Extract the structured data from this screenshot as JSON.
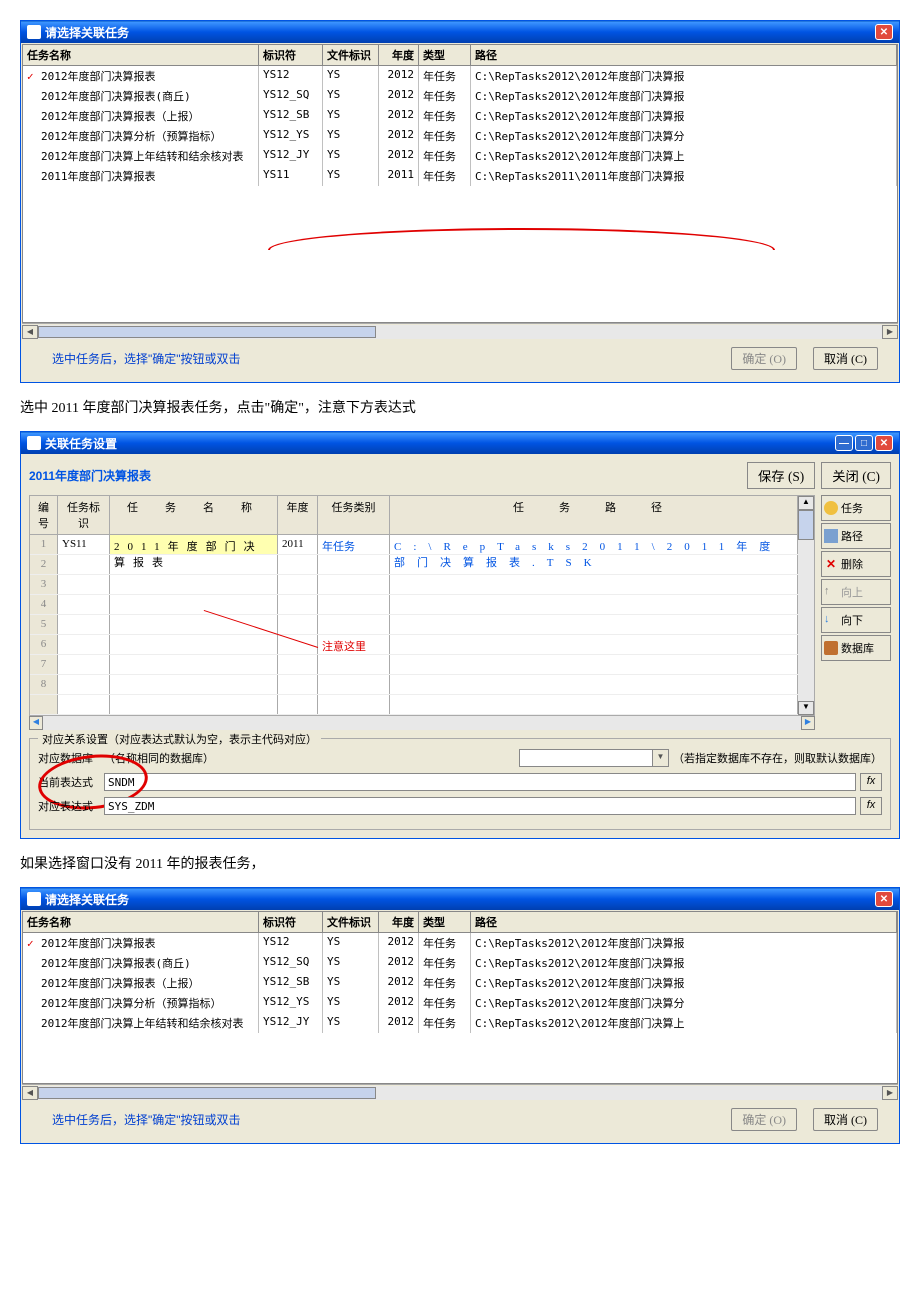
{
  "dialog1": {
    "title": "请选择关联任务",
    "cols": {
      "name": "任务名称",
      "id": "标识符",
      "file": "文件标识",
      "year": "年度",
      "type": "类型",
      "path": "路径"
    },
    "rows": [
      {
        "checked": true,
        "name": "2012年度部门决算报表",
        "id": "YS12",
        "file": "YS",
        "year": "2012",
        "type": "年任务",
        "path": "C:\\RepTasks2012\\2012年度部门决算报"
      },
      {
        "name": "2012年度部门决算报表(商丘)",
        "id": "YS12_SQ",
        "file": "YS",
        "year": "2012",
        "type": "年任务",
        "path": "C:\\RepTasks2012\\2012年度部门决算报"
      },
      {
        "name": "2012年度部门决算报表（上报）",
        "id": "YS12_SB",
        "file": "YS",
        "year": "2012",
        "type": "年任务",
        "path": "C:\\RepTasks2012\\2012年度部门决算报"
      },
      {
        "name": "2012年度部门决算分析（预算指标）",
        "id": "YS12_YS",
        "file": "YS",
        "year": "2012",
        "type": "年任务",
        "path": "C:\\RepTasks2012\\2012年度部门决算分"
      },
      {
        "name": "2012年度部门决算上年结转和结余核对表",
        "id": "YS12_JY",
        "file": "YS",
        "year": "2012",
        "type": "年任务",
        "path": "C:\\RepTasks2012\\2012年度部门决算上"
      },
      {
        "name": "2011年度部门决算报表",
        "id": "YS11",
        "file": "YS",
        "year": "2011",
        "type": "年任务",
        "path": "C:\\RepTasks2011\\2011年度部门决算报"
      }
    ],
    "hint": "选中任务后，选择\"确定\"按钮或双击",
    "ok": "确定 (O)",
    "cancel": "取消 (C)"
  },
  "caption1": "选中 2011 年度部门决算报表任务，点击\"确定\"，注意下方表达式",
  "dialog2": {
    "title": "关联任务设置",
    "subtitle": "2011年度部门决算报表",
    "save": "保存 (S)",
    "close": "关闭 (C)",
    "cols": {
      "num": "编号",
      "id": "任务标识",
      "name": "任　务　名　称",
      "year": "年度",
      "type": "任务类别",
      "path": "任　务　路　径"
    },
    "row1": {
      "num": "1",
      "id": "YS11",
      "name": "2011年度部门决算报表",
      "year": "2011",
      "type": "年任务",
      "path": "C:\\RepTasks2011\\2011年度部门决算报表.TSK"
    },
    "empty_rows": [
      "2",
      "3",
      "4",
      "5",
      "6",
      "7",
      "8",
      ""
    ],
    "annotation": "注意这里",
    "sidebar": {
      "task": "任务",
      "path": "路径",
      "delete": "删除",
      "up": "向上",
      "down": "向下",
      "db": "数据库"
    },
    "group": {
      "title": "对应关系设置（对应表达式默认为空，表示主代码对应）",
      "dblabel": "对应数据库",
      "dbsuffix": "（名称相同的数据库）",
      "dbsuffix2": "（若指定数据库不存在，则取默认数据库）",
      "e1label": "当前表达式",
      "e1": "SNDM",
      "e2label": "对应表达式",
      "e2": "SYS_ZDM"
    }
  },
  "caption2": "如果选择窗口没有 2011 年的报表任务，",
  "dialog3": {
    "title": "请选择关联任务",
    "rows": [
      {
        "checked": true,
        "name": "2012年度部门决算报表",
        "id": "YS12",
        "file": "YS",
        "year": "2012",
        "type": "年任务",
        "path": "C:\\RepTasks2012\\2012年度部门决算报"
      },
      {
        "name": "2012年度部门决算报表(商丘)",
        "id": "YS12_SQ",
        "file": "YS",
        "year": "2012",
        "type": "年任务",
        "path": "C:\\RepTasks2012\\2012年度部门决算报"
      },
      {
        "name": "2012年度部门决算报表（上报）",
        "id": "YS12_SB",
        "file": "YS",
        "year": "2012",
        "type": "年任务",
        "path": "C:\\RepTasks2012\\2012年度部门决算报"
      },
      {
        "name": "2012年度部门决算分析（预算指标）",
        "id": "YS12_YS",
        "file": "YS",
        "year": "2012",
        "type": "年任务",
        "path": "C:\\RepTasks2012\\2012年度部门决算分"
      },
      {
        "name": "2012年度部门决算上年结转和结余核对表",
        "id": "YS12_JY",
        "file": "YS",
        "year": "2012",
        "type": "年任务",
        "path": "C:\\RepTasks2012\\2012年度部门决算上"
      }
    ]
  }
}
